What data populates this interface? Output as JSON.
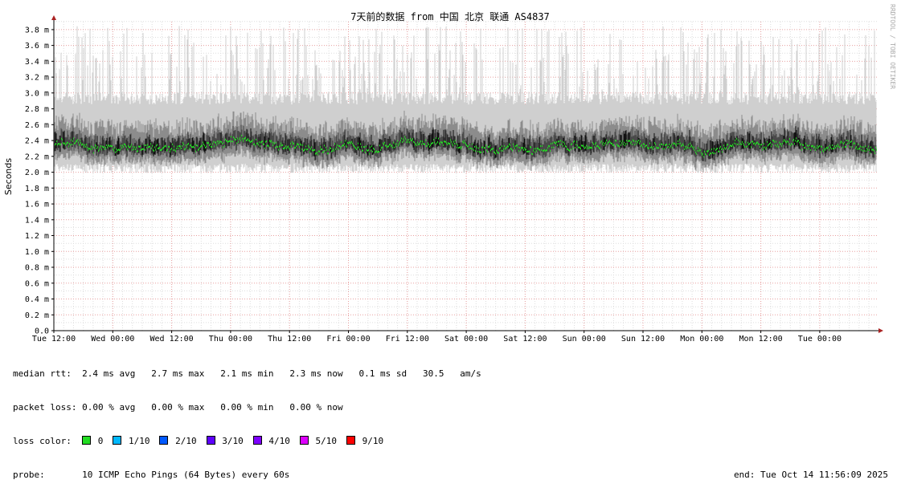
{
  "chart_data": {
    "type": "line",
    "title": "7天前的数据 from 中国 北京 联通 AS4837",
    "ylabel": "Seconds",
    "watermark": "RRDTOOL / TOBI OETIKER",
    "yticks": [
      "0.0",
      "0.2 m",
      "0.4 m",
      "0.6 m",
      "0.8 m",
      "1.0 m",
      "1.2 m",
      "1.4 m",
      "1.6 m",
      "1.8 m",
      "2.0 m",
      "2.2 m",
      "2.4 m",
      "2.6 m",
      "2.8 m",
      "3.0 m",
      "3.2 m",
      "3.4 m",
      "3.6 m",
      "3.8 m"
    ],
    "ylim_ms": [
      0,
      3.9
    ],
    "xticks": [
      "Tue 12:00",
      "Wed 00:00",
      "Wed 12:00",
      "Thu 00:00",
      "Thu 12:00",
      "Fri 00:00",
      "Fri 12:00",
      "Sat 00:00",
      "Sat 12:00",
      "Sun 00:00",
      "Sun 12:00",
      "Mon 00:00",
      "Mon 12:00",
      "Tue 00:00"
    ],
    "grid": true,
    "series": [
      {
        "name": "median rtt",
        "color": "#22dd22",
        "avg_ms": 2.4,
        "max_ms": 2.7,
        "min_ms": 2.1,
        "now_ms": 2.3,
        "sd_ms": 0.1
      }
    ],
    "smoke_band_ms": {
      "typical_low": 2.05,
      "typical_high": 2.9,
      "spike_max": 3.85
    }
  },
  "legend": {
    "median_label": "median rtt:",
    "median_values": "2.4 ms avg   2.7 ms max   2.1 ms min   2.3 ms now   0.1 ms sd   30.5   am/s",
    "packet_loss_label": "packet loss:",
    "packet_loss_values": "0.00 % avg   0.00 % max   0.00 % min   0.00 % now",
    "loss_color_label": "loss color:",
    "loss_colors": [
      {
        "label": "0",
        "color": "#22dd22"
      },
      {
        "label": "1/10",
        "color": "#00b8ff"
      },
      {
        "label": "2/10",
        "color": "#0059ff"
      },
      {
        "label": "3/10",
        "color": "#5e00ff"
      },
      {
        "label": "4/10",
        "color": "#7e00ff"
      },
      {
        "label": "5/10",
        "color": "#dd00ff"
      },
      {
        "label": "9/10",
        "color": "#ff0000"
      }
    ],
    "probe_label": "probe:",
    "probe_value": "10 ICMP Echo Pings (64 Bytes) every 60s",
    "end_text": "end: Tue Oct 14 11:56:09 2025"
  }
}
